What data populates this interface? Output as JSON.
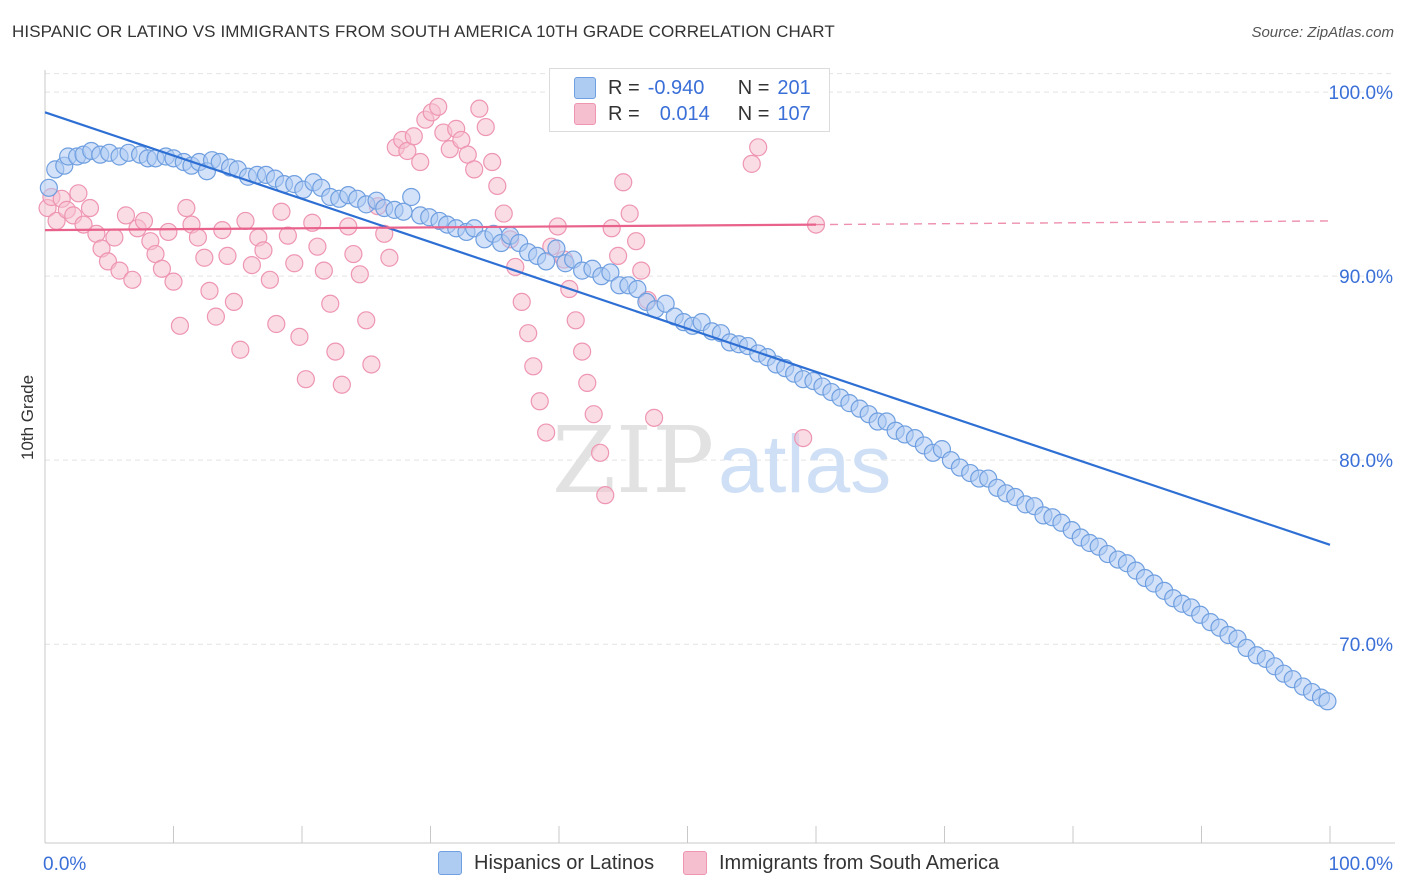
{
  "title": "HISPANIC OR LATINO VS IMMIGRANTS FROM SOUTH AMERICA 10TH GRADE CORRELATION CHART",
  "source": "Source: ZipAtlas.com",
  "watermark": {
    "zip": "ZIP",
    "atlas": "atlas"
  },
  "legend": {
    "rows": [
      {
        "r_label": "R =",
        "r_value": "-0.940",
        "n_label": "N =",
        "n_value": "201"
      },
      {
        "r_label": "R =",
        "r_value": "0.014",
        "n_label": "N =",
        "n_value": "107"
      }
    ]
  },
  "colors": {
    "blue_fill": "#aecbf2",
    "blue_stroke": "#6f9fe0",
    "blue_line": "#2e6fd4",
    "pink_fill": "#f6bfd0",
    "pink_stroke": "#ee95b2",
    "pink_line": "#e8628c",
    "axis_text": "#3a6fd8",
    "grid": "#e4e4e4"
  },
  "chart_data": {
    "type": "scatter",
    "title": "HISPANIC OR LATINO VS IMMIGRANTS FROM SOUTH AMERICA 10TH GRADE CORRELATION CHART",
    "xlabel": "",
    "ylabel": "10th Grade",
    "xlim": [
      0,
      100
    ],
    "ylim": [
      59.2,
      101.2
    ],
    "x_tick_labels": [
      "0.0%",
      "100.0%"
    ],
    "y_ticks": [
      70,
      80,
      90,
      100
    ],
    "y_tick_labels": [
      "70.0%",
      "80.0%",
      "90.0%",
      "100.0%"
    ],
    "grid": true,
    "legend_position": "top-center",
    "series": [
      {
        "name": "Hispanics or Latinos",
        "color": "#aecbf2",
        "r": -0.94,
        "n": 201,
        "trend": {
          "x": [
            0,
            100
          ],
          "y": [
            98.9,
            75.4
          ]
        },
        "points": [
          [
            0.3,
            94.8
          ],
          [
            0.8,
            95.8
          ],
          [
            1.5,
            96.0
          ],
          [
            1.8,
            96.5
          ],
          [
            2.5,
            96.5
          ],
          [
            3.0,
            96.6
          ],
          [
            3.6,
            96.8
          ],
          [
            4.3,
            96.6
          ],
          [
            5.0,
            96.7
          ],
          [
            5.8,
            96.5
          ],
          [
            6.5,
            96.7
          ],
          [
            7.4,
            96.6
          ],
          [
            8.0,
            96.4
          ],
          [
            8.6,
            96.4
          ],
          [
            9.4,
            96.5
          ],
          [
            10.0,
            96.4
          ],
          [
            10.8,
            96.2
          ],
          [
            11.4,
            96.0
          ],
          [
            12.0,
            96.2
          ],
          [
            12.6,
            95.7
          ],
          [
            13.0,
            96.3
          ],
          [
            13.6,
            96.2
          ],
          [
            14.4,
            95.9
          ],
          [
            15.0,
            95.8
          ],
          [
            15.8,
            95.4
          ],
          [
            16.5,
            95.5
          ],
          [
            17.2,
            95.5
          ],
          [
            17.9,
            95.3
          ],
          [
            18.6,
            95.0
          ],
          [
            19.4,
            95.0
          ],
          [
            20.1,
            94.7
          ],
          [
            20.9,
            95.1
          ],
          [
            21.5,
            94.8
          ],
          [
            22.2,
            94.3
          ],
          [
            22.9,
            94.2
          ],
          [
            23.6,
            94.4
          ],
          [
            24.3,
            94.2
          ],
          [
            25.0,
            93.9
          ],
          [
            25.8,
            94.1
          ],
          [
            26.4,
            93.7
          ],
          [
            27.2,
            93.6
          ],
          [
            27.9,
            93.5
          ],
          [
            28.5,
            94.3
          ],
          [
            29.2,
            93.3
          ],
          [
            29.9,
            93.2
          ],
          [
            30.7,
            93.0
          ],
          [
            31.3,
            92.8
          ],
          [
            32.0,
            92.6
          ],
          [
            32.8,
            92.4
          ],
          [
            33.4,
            92.6
          ],
          [
            34.2,
            92.0
          ],
          [
            34.9,
            92.3
          ],
          [
            35.5,
            91.8
          ],
          [
            36.2,
            92.2
          ],
          [
            36.9,
            91.8
          ],
          [
            37.6,
            91.3
          ],
          [
            38.3,
            91.1
          ],
          [
            39.0,
            90.8
          ],
          [
            39.8,
            91.5
          ],
          [
            40.5,
            90.7
          ],
          [
            41.1,
            90.9
          ],
          [
            41.8,
            90.3
          ],
          [
            42.6,
            90.4
          ],
          [
            43.3,
            90.0
          ],
          [
            44.0,
            90.2
          ],
          [
            44.7,
            89.5
          ],
          [
            45.4,
            89.5
          ],
          [
            46.1,
            89.3
          ],
          [
            46.8,
            88.6
          ],
          [
            47.5,
            88.2
          ],
          [
            48.3,
            88.5
          ],
          [
            49.0,
            87.8
          ],
          [
            49.7,
            87.5
          ],
          [
            50.4,
            87.3
          ],
          [
            51.1,
            87.5
          ],
          [
            51.9,
            87.0
          ],
          [
            52.6,
            86.9
          ],
          [
            53.3,
            86.4
          ],
          [
            54.0,
            86.3
          ],
          [
            54.7,
            86.2
          ],
          [
            55.5,
            85.8
          ],
          [
            56.2,
            85.6
          ],
          [
            56.9,
            85.2
          ],
          [
            57.6,
            85.0
          ],
          [
            58.3,
            84.7
          ],
          [
            59.0,
            84.4
          ],
          [
            59.8,
            84.3
          ],
          [
            60.5,
            84.0
          ],
          [
            61.2,
            83.7
          ],
          [
            61.9,
            83.4
          ],
          [
            62.6,
            83.1
          ],
          [
            63.4,
            82.8
          ],
          [
            64.1,
            82.5
          ],
          [
            64.8,
            82.1
          ],
          [
            65.5,
            82.1
          ],
          [
            66.2,
            81.6
          ],
          [
            66.9,
            81.4
          ],
          [
            67.7,
            81.2
          ],
          [
            68.4,
            80.8
          ],
          [
            69.1,
            80.4
          ],
          [
            69.8,
            80.6
          ],
          [
            70.5,
            80.0
          ],
          [
            71.2,
            79.6
          ],
          [
            72.0,
            79.3
          ],
          [
            72.7,
            79.0
          ],
          [
            73.4,
            79.0
          ],
          [
            74.1,
            78.5
          ],
          [
            74.8,
            78.2
          ],
          [
            75.5,
            78.0
          ],
          [
            76.3,
            77.6
          ],
          [
            77.0,
            77.5
          ],
          [
            77.7,
            77.0
          ],
          [
            78.4,
            76.9
          ],
          [
            79.1,
            76.6
          ],
          [
            79.9,
            76.2
          ],
          [
            80.6,
            75.8
          ],
          [
            81.3,
            75.5
          ],
          [
            82.0,
            75.3
          ],
          [
            82.7,
            74.9
          ],
          [
            83.5,
            74.6
          ],
          [
            84.2,
            74.4
          ],
          [
            84.9,
            74.0
          ],
          [
            85.6,
            73.6
          ],
          [
            86.3,
            73.3
          ],
          [
            87.1,
            72.9
          ],
          [
            87.8,
            72.5
          ],
          [
            88.5,
            72.2
          ],
          [
            89.2,
            72.0
          ],
          [
            89.9,
            71.6
          ],
          [
            90.7,
            71.2
          ],
          [
            91.4,
            70.9
          ],
          [
            92.1,
            70.5
          ],
          [
            92.8,
            70.3
          ],
          [
            93.5,
            69.8
          ],
          [
            94.3,
            69.4
          ],
          [
            95.0,
            69.2
          ],
          [
            95.7,
            68.8
          ],
          [
            96.4,
            68.4
          ],
          [
            97.1,
            68.1
          ],
          [
            97.9,
            67.7
          ],
          [
            98.6,
            67.4
          ],
          [
            99.3,
            67.1
          ],
          [
            99.8,
            66.9
          ]
        ]
      },
      {
        "name": "Immigrants from South America",
        "color": "#f6bfd0",
        "r": 0.014,
        "n": 107,
        "trend": {
          "x": [
            0,
            60,
            100
          ],
          "y": [
            92.5,
            92.8,
            93.0
          ],
          "solid_until": 60
        },
        "points": [
          [
            0.2,
            93.7
          ],
          [
            0.5,
            94.3
          ],
          [
            0.9,
            93.0
          ],
          [
            1.3,
            94.2
          ],
          [
            1.7,
            93.6
          ],
          [
            2.2,
            93.3
          ],
          [
            2.6,
            94.5
          ],
          [
            3.0,
            92.8
          ],
          [
            3.5,
            93.7
          ],
          [
            4.0,
            92.3
          ],
          [
            4.4,
            91.5
          ],
          [
            4.9,
            90.8
          ],
          [
            5.4,
            92.1
          ],
          [
            5.8,
            90.3
          ],
          [
            6.3,
            93.3
          ],
          [
            6.8,
            89.8
          ],
          [
            7.2,
            92.6
          ],
          [
            7.7,
            93.0
          ],
          [
            8.2,
            91.9
          ],
          [
            8.6,
            91.2
          ],
          [
            9.1,
            90.4
          ],
          [
            9.6,
            92.4
          ],
          [
            10.0,
            89.7
          ],
          [
            10.5,
            87.3
          ],
          [
            11.0,
            93.7
          ],
          [
            11.4,
            92.8
          ],
          [
            11.9,
            92.1
          ],
          [
            12.4,
            91.0
          ],
          [
            12.8,
            89.2
          ],
          [
            13.3,
            87.8
          ],
          [
            13.8,
            92.5
          ],
          [
            14.2,
            91.1
          ],
          [
            14.7,
            88.6
          ],
          [
            15.2,
            86.0
          ],
          [
            15.6,
            93.0
          ],
          [
            16.1,
            90.6
          ],
          [
            16.6,
            92.1
          ],
          [
            17.0,
            91.4
          ],
          [
            17.5,
            89.8
          ],
          [
            18.0,
            87.4
          ],
          [
            18.4,
            93.5
          ],
          [
            18.9,
            92.2
          ],
          [
            19.4,
            90.7
          ],
          [
            19.8,
            86.7
          ],
          [
            20.3,
            84.4
          ],
          [
            20.8,
            92.9
          ],
          [
            21.2,
            91.6
          ],
          [
            21.7,
            90.3
          ],
          [
            22.2,
            88.5
          ],
          [
            22.6,
            85.9
          ],
          [
            23.1,
            84.1
          ],
          [
            23.6,
            92.7
          ],
          [
            24.0,
            91.2
          ],
          [
            24.5,
            90.1
          ],
          [
            25.0,
            87.6
          ],
          [
            25.4,
            85.2
          ],
          [
            25.9,
            93.8
          ],
          [
            26.4,
            92.3
          ],
          [
            26.8,
            91.0
          ],
          [
            27.3,
            97.0
          ],
          [
            27.8,
            97.4
          ],
          [
            28.2,
            96.8
          ],
          [
            28.7,
            97.6
          ],
          [
            29.2,
            96.2
          ],
          [
            29.6,
            98.5
          ],
          [
            30.1,
            98.9
          ],
          [
            30.6,
            99.2
          ],
          [
            31.0,
            97.8
          ],
          [
            31.5,
            96.9
          ],
          [
            32.0,
            98.0
          ],
          [
            32.4,
            97.4
          ],
          [
            32.9,
            96.6
          ],
          [
            33.4,
            95.8
          ],
          [
            33.8,
            99.1
          ],
          [
            34.3,
            98.1
          ],
          [
            34.8,
            96.2
          ],
          [
            35.2,
            94.9
          ],
          [
            35.7,
            93.4
          ],
          [
            36.2,
            92.0
          ],
          [
            36.6,
            90.5
          ],
          [
            37.1,
            88.6
          ],
          [
            37.6,
            86.9
          ],
          [
            38.0,
            85.1
          ],
          [
            38.5,
            83.2
          ],
          [
            39.0,
            81.5
          ],
          [
            39.4,
            91.6
          ],
          [
            39.9,
            92.7
          ],
          [
            40.4,
            90.9
          ],
          [
            40.8,
            89.3
          ],
          [
            41.3,
            87.6
          ],
          [
            41.8,
            85.9
          ],
          [
            42.2,
            84.2
          ],
          [
            42.7,
            82.5
          ],
          [
            43.2,
            80.4
          ],
          [
            43.6,
            78.1
          ],
          [
            44.1,
            92.6
          ],
          [
            44.6,
            91.1
          ],
          [
            45.0,
            95.1
          ],
          [
            45.5,
            93.4
          ],
          [
            46.0,
            91.9
          ],
          [
            46.4,
            90.3
          ],
          [
            46.9,
            88.7
          ],
          [
            47.4,
            82.3
          ],
          [
            55.0,
            96.1
          ],
          [
            55.5,
            97.0
          ],
          [
            59.0,
            81.2
          ],
          [
            60.0,
            92.8
          ]
        ]
      }
    ]
  },
  "bottom_legend": {
    "items": [
      {
        "label": "Hispanics or Latinos"
      },
      {
        "label": "Immigrants from South America"
      }
    ]
  }
}
